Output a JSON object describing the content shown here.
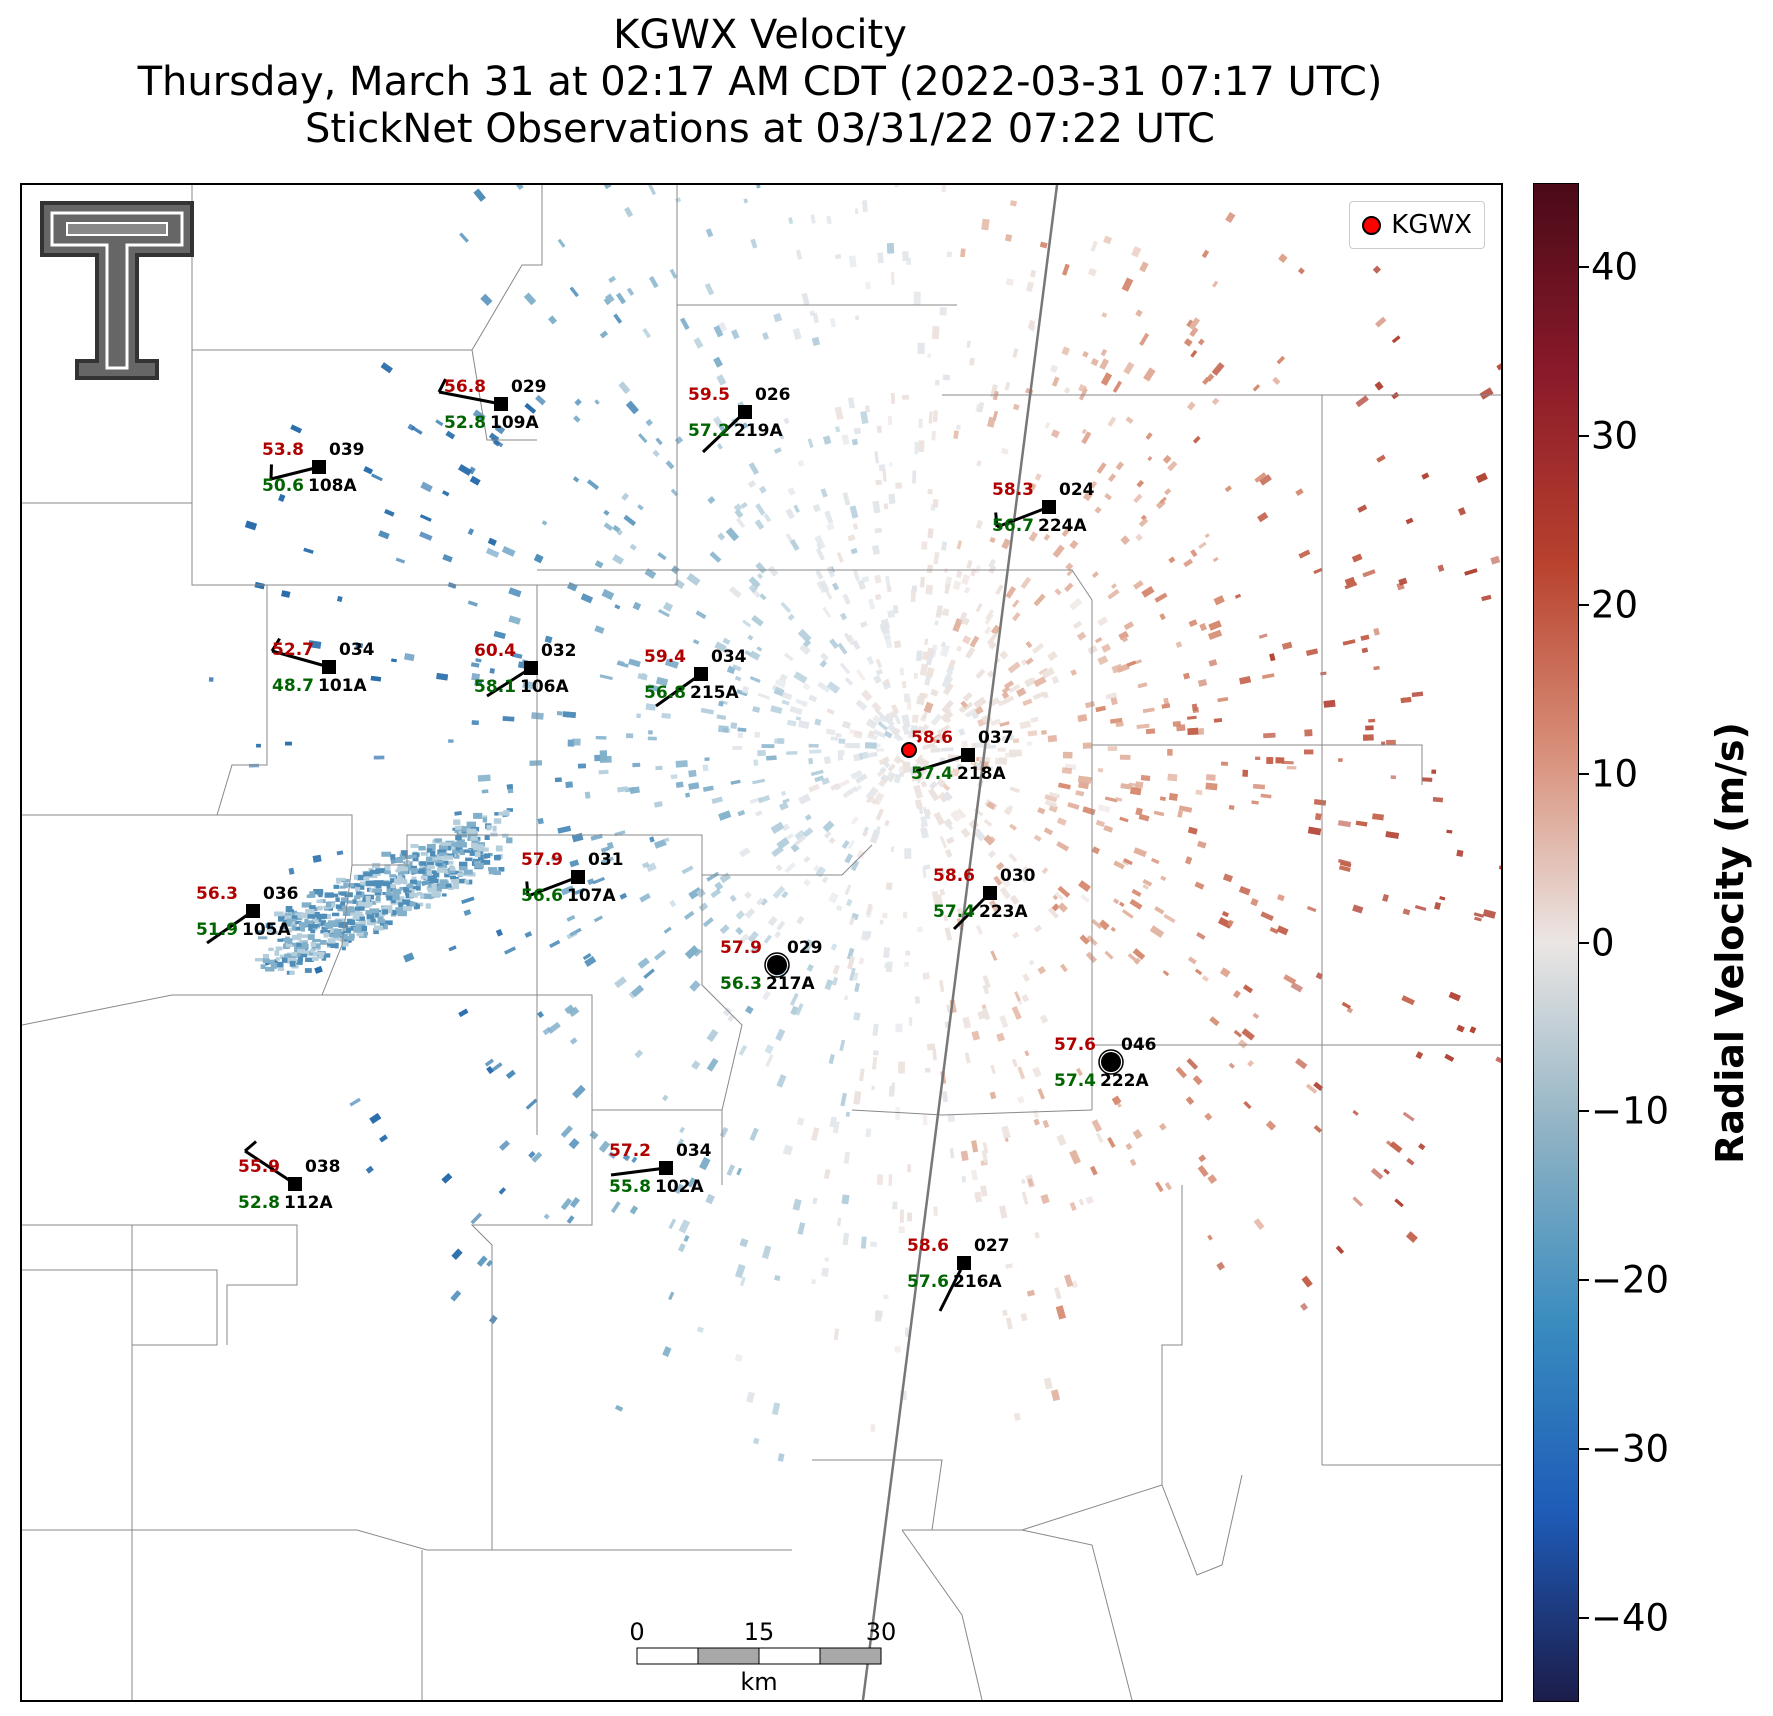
{
  "title": {
    "line1": "KGWX Velocity",
    "line2": "Thursday, March 31 at 02:17 AM CDT (2022-03-31 07:17 UTC)",
    "line3": "StickNet Observations at 03/31/22 07:22 UTC"
  },
  "legend": {
    "label": "KGWX",
    "marker_color": "#ff0000"
  },
  "colorbar": {
    "label": "Radial Velocity (m/s)",
    "range": [
      -45,
      45
    ],
    "ticks": [
      "40",
      "30",
      "20",
      "10",
      "0",
      "−10",
      "−20",
      "−30",
      "−40"
    ],
    "tick_values": [
      40,
      30,
      20,
      10,
      0,
      -10,
      -20,
      -30,
      -40
    ],
    "colors": [
      "#4a0a18",
      "#8a1a2a",
      "#b8422e",
      "#d8907a",
      "#ebe6e4",
      "#8fb2c4",
      "#3a8cbf",
      "#1e5cb8",
      "#1c1c4a"
    ]
  },
  "scale_bar": {
    "labels": [
      "0",
      "15",
      "30"
    ],
    "unit": "km"
  },
  "logo": {
    "name": "Texas Tech double-T"
  },
  "stations": [
    {
      "id": "108A",
      "temp": "53.8",
      "dew": "50.6",
      "pres": "039"
    },
    {
      "id": "109A",
      "temp": "56.8",
      "dew": "52.8",
      "pres": "029"
    },
    {
      "id": "219A",
      "temp": "59.5",
      "dew": "57.2",
      "pres": "026"
    },
    {
      "id": "224A",
      "temp": "58.3",
      "dew": "56.7",
      "pres": "024"
    },
    {
      "id": "101A",
      "temp": "52.7",
      "dew": "48.7",
      "pres": "034"
    },
    {
      "id": "106A",
      "temp": "60.4",
      "dew": "58.1",
      "pres": "032"
    },
    {
      "id": "215A",
      "temp": "59.4",
      "dew": "56.8",
      "pres": "034"
    },
    {
      "id": "218A",
      "temp": "58.6",
      "dew": "57.4",
      "pres": "037"
    },
    {
      "id": "107A",
      "temp": "57.9",
      "dew": "56.6",
      "pres": "031"
    },
    {
      "id": "105A",
      "temp": "56.3",
      "dew": "51.9",
      "pres": "036"
    },
    {
      "id": "223A",
      "temp": "58.6",
      "dew": "57.4",
      "pres": "030"
    },
    {
      "id": "217A",
      "temp": "57.9",
      "dew": "56.3",
      "pres": "029"
    },
    {
      "id": "222A",
      "temp": "57.6",
      "dew": "57.4",
      "pres": "046"
    },
    {
      "id": "112A",
      "temp": "55.9",
      "dew": "52.8",
      "pres": "038"
    },
    {
      "id": "102A",
      "temp": "57.2",
      "dew": "55.8",
      "pres": "034"
    },
    {
      "id": "216A",
      "temp": "58.6",
      "dew": "57.6",
      "pres": "027"
    }
  ]
}
